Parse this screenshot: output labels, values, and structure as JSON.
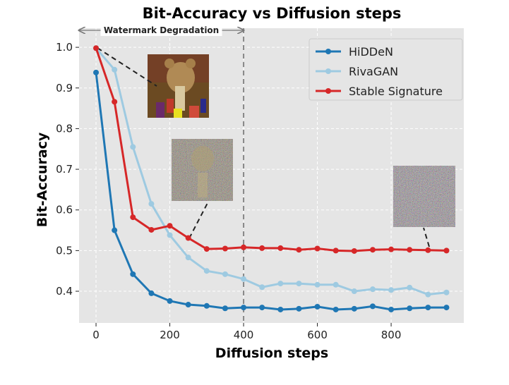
{
  "chart_data": {
    "type": "line",
    "title": "Bit-Accuracy vs Diffusion steps",
    "xlabel": "Diffusion steps",
    "ylabel": "Bit-Accuracy",
    "xlim": [
      -46,
      997
    ],
    "ylim": [
      0.322,
      1.047
    ],
    "xticks": [
      0,
      200,
      400,
      600,
      800
    ],
    "yticks": [
      0.4,
      0.5,
      0.6,
      0.7,
      0.8,
      0.9,
      1.0
    ],
    "grid": true,
    "legend_position": "top-right",
    "x": [
      0,
      50,
      100,
      150,
      200,
      250,
      300,
      350,
      400,
      450,
      500,
      550,
      600,
      650,
      700,
      750,
      800,
      850,
      900,
      950
    ],
    "series": [
      {
        "name": "HiDDeN",
        "color": "#1f77b4",
        "values": [
          0.938,
          0.55,
          0.442,
          0.395,
          0.376,
          0.367,
          0.364,
          0.358,
          0.36,
          0.36,
          0.355,
          0.357,
          0.362,
          0.355,
          0.357,
          0.363,
          0.355,
          0.358,
          0.36,
          0.36
        ]
      },
      {
        "name": "RivaGAN",
        "color": "#9ecae1",
        "values": [
          0.998,
          0.945,
          0.755,
          0.615,
          0.538,
          0.483,
          0.45,
          0.442,
          0.43,
          0.41,
          0.419,
          0.419,
          0.416,
          0.416,
          0.4,
          0.405,
          0.403,
          0.409,
          0.392,
          0.397
        ]
      },
      {
        "name": "Stable Signature",
        "color": "#d62728",
        "values": [
          0.998,
          0.866,
          0.582,
          0.551,
          0.561,
          0.531,
          0.504,
          0.505,
          0.508,
          0.506,
          0.506,
          0.502,
          0.505,
          0.5,
          0.499,
          0.502,
          0.503,
          0.502,
          0.501,
          0.5
        ]
      }
    ],
    "annotations": {
      "vline_x": 400,
      "span_label": "Watermark Degradation",
      "span": [
        -46,
        400
      ]
    }
  }
}
